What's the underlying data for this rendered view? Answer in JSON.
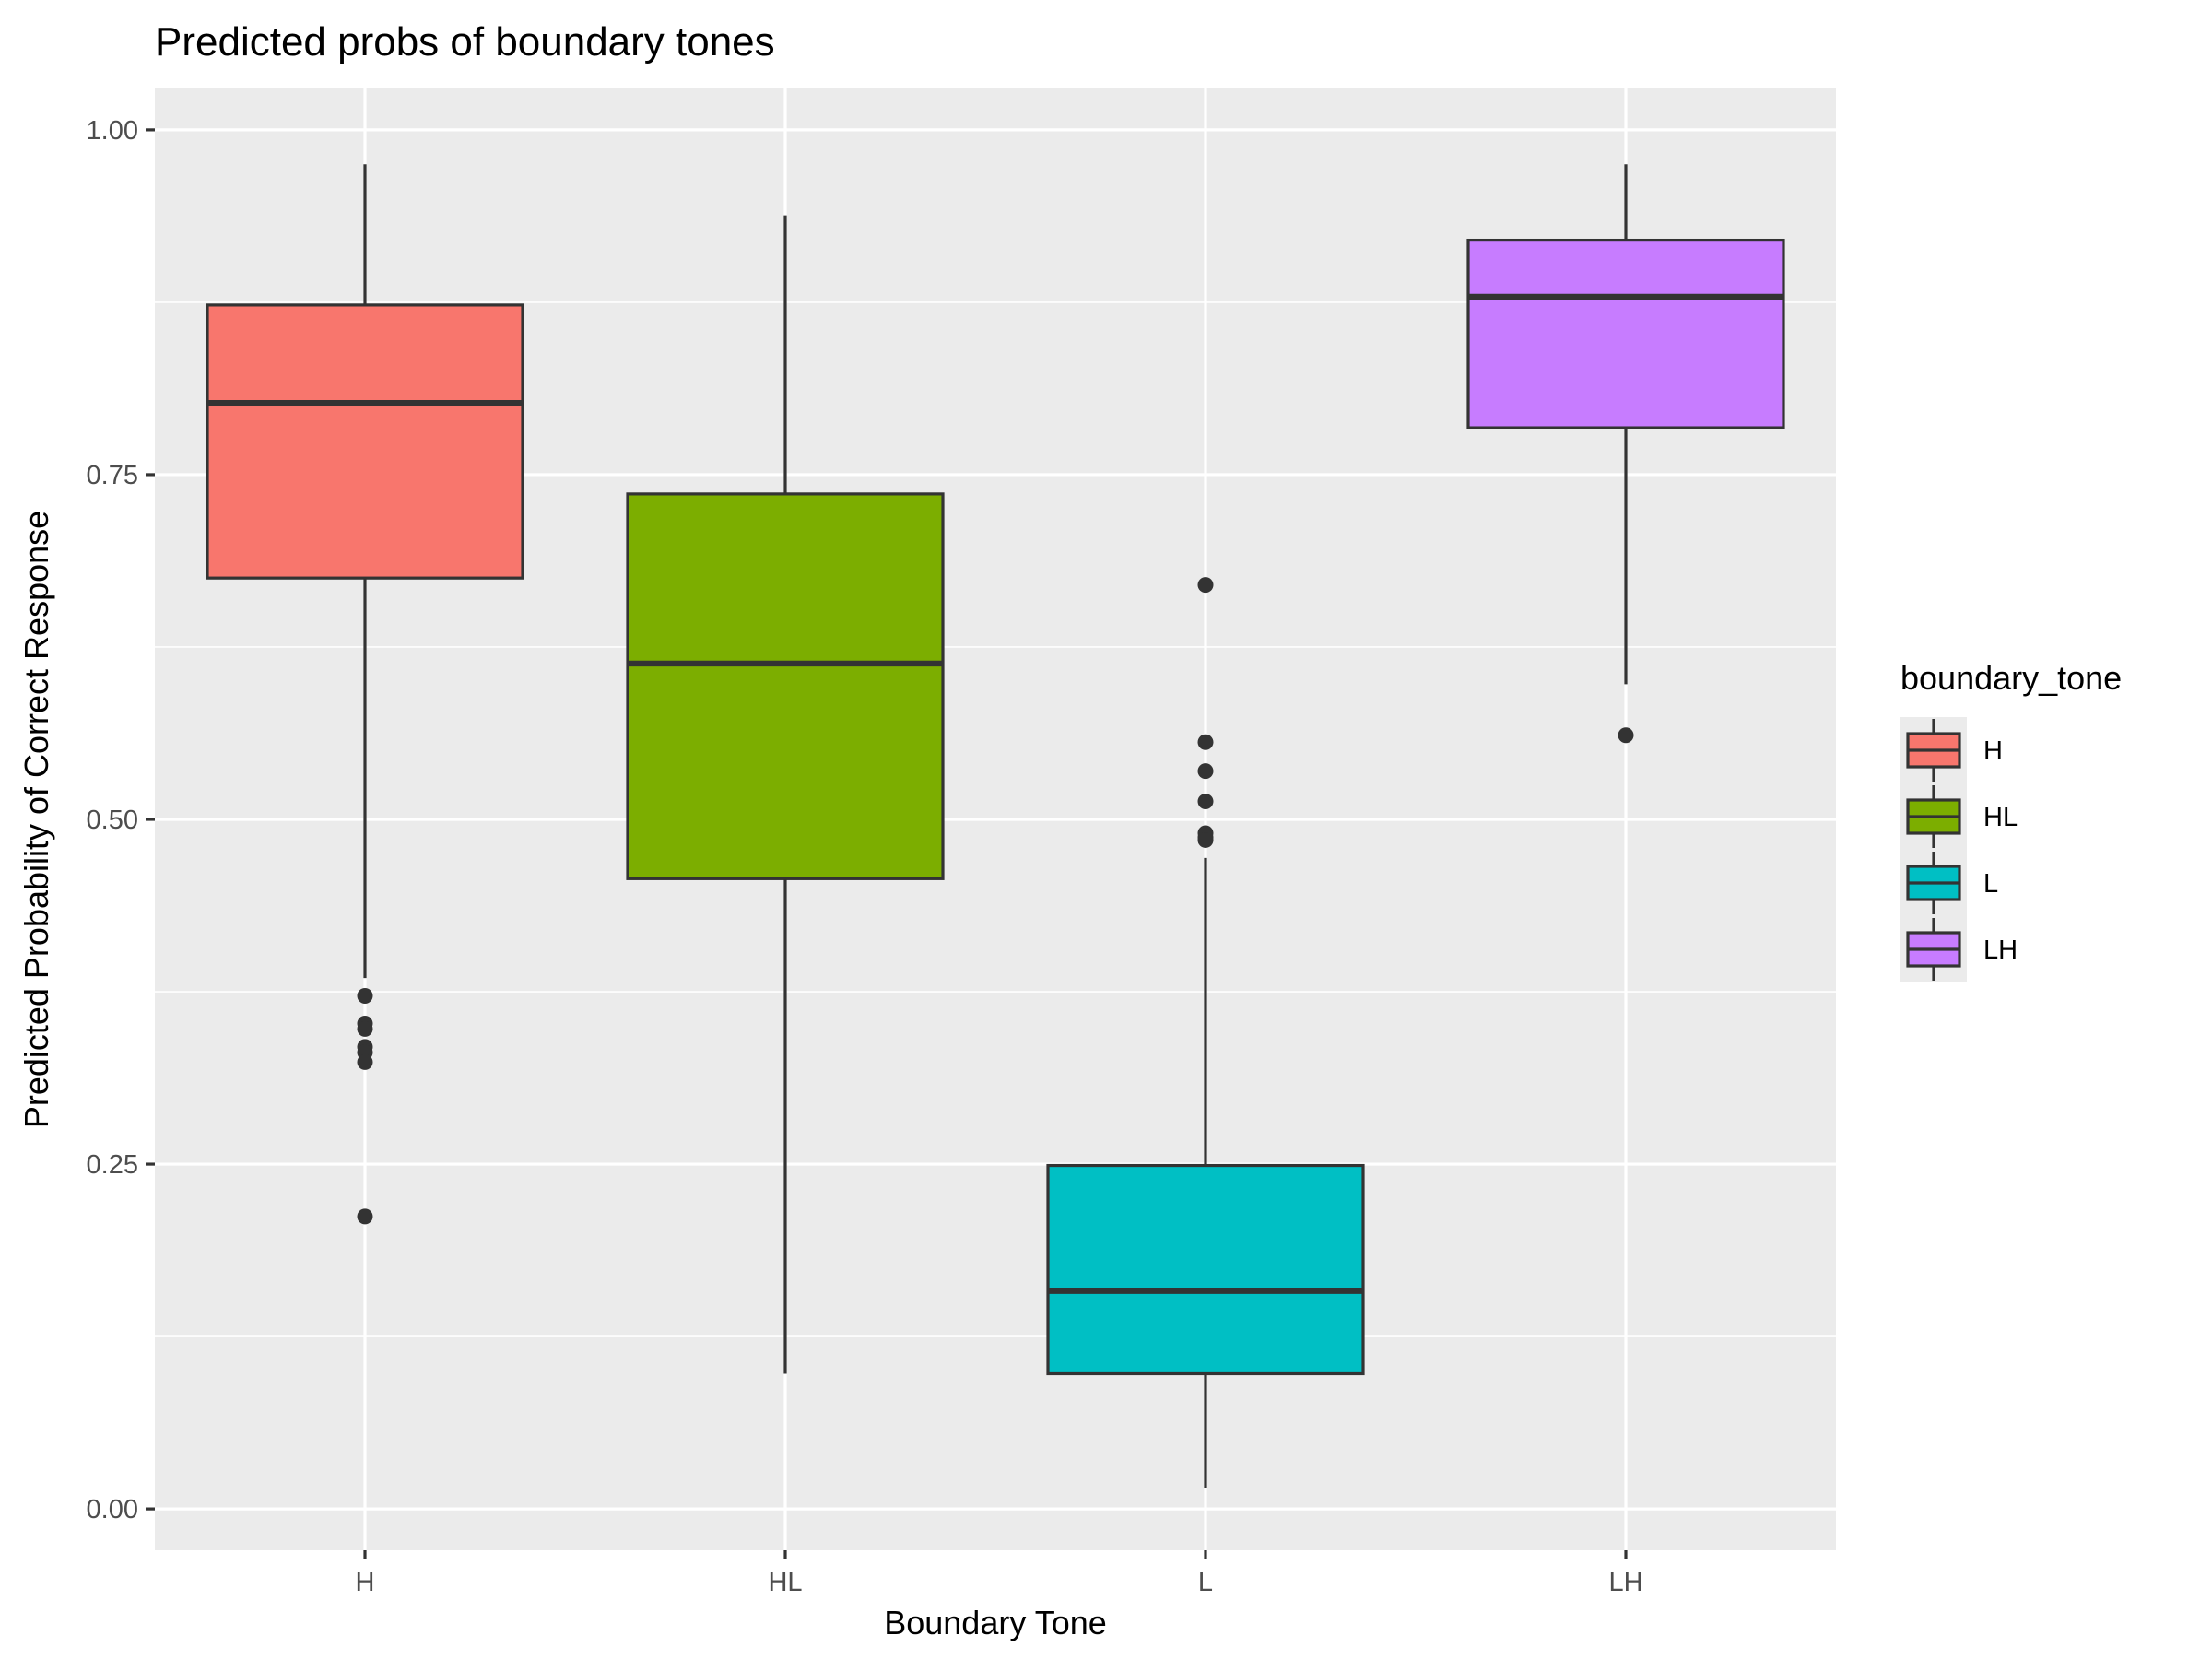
{
  "chart_data": {
    "type": "boxplot",
    "title": "Predicted probs of boundary tones",
    "xlabel": "Boundary Tone",
    "ylabel": "Predicted Probability of Correct Response",
    "ylim": [
      -0.03,
      1.03
    ],
    "yticks": [
      "0.00",
      "0.25",
      "0.50",
      "0.75",
      "1.00"
    ],
    "ytick_values": [
      0,
      0.25,
      0.5,
      0.75,
      1.0
    ],
    "categories": [
      "H",
      "HL",
      "L",
      "LH"
    ],
    "grid": true,
    "legend": {
      "title": "boundary_tone",
      "position": "right",
      "entries": [
        "H",
        "HL",
        "L",
        "LH"
      ]
    },
    "boxes": [
      {
        "category": "H",
        "color": "#F8766D",
        "whisker_low": 0.385,
        "q1": 0.675,
        "median": 0.802,
        "q3": 0.873,
        "whisker_high": 0.975,
        "outliers": [
          0.372,
          0.352,
          0.348,
          0.335,
          0.331,
          0.324,
          0.212
        ]
      },
      {
        "category": "HL",
        "color": "#7CAE00",
        "whisker_low": 0.098,
        "q1": 0.457,
        "median": 0.613,
        "q3": 0.736,
        "whisker_high": 0.938,
        "outliers": []
      },
      {
        "category": "L",
        "color": "#00BFC4",
        "whisker_low": 0.015,
        "q1": 0.098,
        "median": 0.158,
        "q3": 0.249,
        "whisker_high": 0.472,
        "outliers": [
          0.67,
          0.556,
          0.535,
          0.513,
          0.49,
          0.487,
          0.485
        ]
      },
      {
        "category": "LH",
        "color": "#C77CFF",
        "whisker_low": 0.598,
        "q1": 0.784,
        "median": 0.879,
        "q3": 0.92,
        "whisker_high": 0.975,
        "outliers": [
          0.561
        ]
      }
    ]
  },
  "colors": {
    "panel_background": "#EBEBEB",
    "grid_major": "#FFFFFF",
    "box_outline": "#333333"
  }
}
